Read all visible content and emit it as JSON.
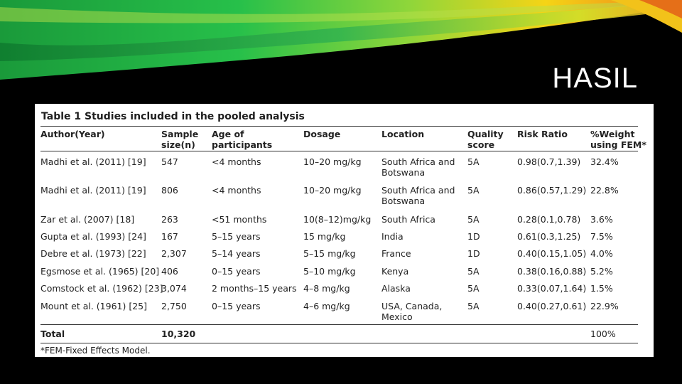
{
  "slide": {
    "title": "HASIL"
  },
  "colors": {
    "background": "#000000",
    "swoosh_green": "#27c04a",
    "swoosh_yellow": "#f5d416",
    "swoosh_orange": "#ee7d1b"
  },
  "table": {
    "caption_label": "Table 1",
    "caption_text": "Studies included in the pooled analysis",
    "headers": [
      [
        "Author(Year)"
      ],
      [
        "Sample",
        "size(n)"
      ],
      [
        "Age of",
        "participants"
      ],
      [
        "Dosage"
      ],
      [
        "Location"
      ],
      [
        "Quality",
        "score"
      ],
      [
        "Risk Ratio"
      ],
      [
        "%Weight",
        "using FEM*"
      ]
    ],
    "rows": [
      [
        [
          "Madhi et al. (2011) [19]"
        ],
        [
          "547"
        ],
        [
          "<4 months"
        ],
        [
          "10–20 mg/kg"
        ],
        [
          "South Africa and",
          "Botswana"
        ],
        [
          "5A"
        ],
        [
          "0.98(0.7,1.39)"
        ],
        [
          "32.4%"
        ]
      ],
      [
        [
          "Madhi et al. (2011) [19]"
        ],
        [
          "806"
        ],
        [
          "<4 months"
        ],
        [
          "10–20 mg/kg"
        ],
        [
          "South Africa and",
          "Botswana"
        ],
        [
          "5A"
        ],
        [
          "0.86(0.57,1.29)"
        ],
        [
          "22.8%"
        ]
      ],
      [
        [
          "Zar et al. (2007) [18]"
        ],
        [
          "263"
        ],
        [
          "<51 months"
        ],
        [
          "10(8–12)mg/kg"
        ],
        [
          "South Africa"
        ],
        [
          "5A"
        ],
        [
          "0.28(0.1,0.78)"
        ],
        [
          "3.6%"
        ]
      ],
      [
        [
          "Gupta et al. (1993) [24]"
        ],
        [
          "167"
        ],
        [
          "5–15 years"
        ],
        [
          "15 mg/kg"
        ],
        [
          "India"
        ],
        [
          "1D"
        ],
        [
          "0.61(0.3,1.25)"
        ],
        [
          "7.5%"
        ]
      ],
      [
        [
          "Debre et al. (1973) [22]"
        ],
        [
          "2,307"
        ],
        [
          "5–14 years"
        ],
        [
          "5–15 mg/kg"
        ],
        [
          "France"
        ],
        [
          "1D"
        ],
        [
          "0.40(0.15,1.05)"
        ],
        [
          "4.0%"
        ]
      ],
      [
        [
          "Egsmose et al. (1965) [20]"
        ],
        [
          "406"
        ],
        [
          "0–15 years"
        ],
        [
          "5–10 mg/kg"
        ],
        [
          "Kenya"
        ],
        [
          "5A"
        ],
        [
          "0.38(0.16,0.88)"
        ],
        [
          "5.2%"
        ]
      ],
      [
        [
          "Comstock et al. (1962) [23]"
        ],
        [
          "3,074"
        ],
        [
          "2 months–15 years"
        ],
        [
          "4–8 mg/kg"
        ],
        [
          "Alaska"
        ],
        [
          "5A"
        ],
        [
          "0.33(0.07,1.64)"
        ],
        [
          "1.5%"
        ]
      ],
      [
        [
          "Mount et al. (1961) [25]"
        ],
        [
          "2,750"
        ],
        [
          "0–15 years"
        ],
        [
          "4–6 mg/kg"
        ],
        [
          "USA, Canada,",
          "Mexico"
        ],
        [
          "5A"
        ],
        [
          "0.40(0.27,0.61)"
        ],
        [
          "22.9%"
        ]
      ]
    ],
    "total": {
      "label": "Total",
      "sample": "10,320",
      "weight": "100%"
    },
    "footnote": "*FEM-Fixed Effects Model."
  }
}
